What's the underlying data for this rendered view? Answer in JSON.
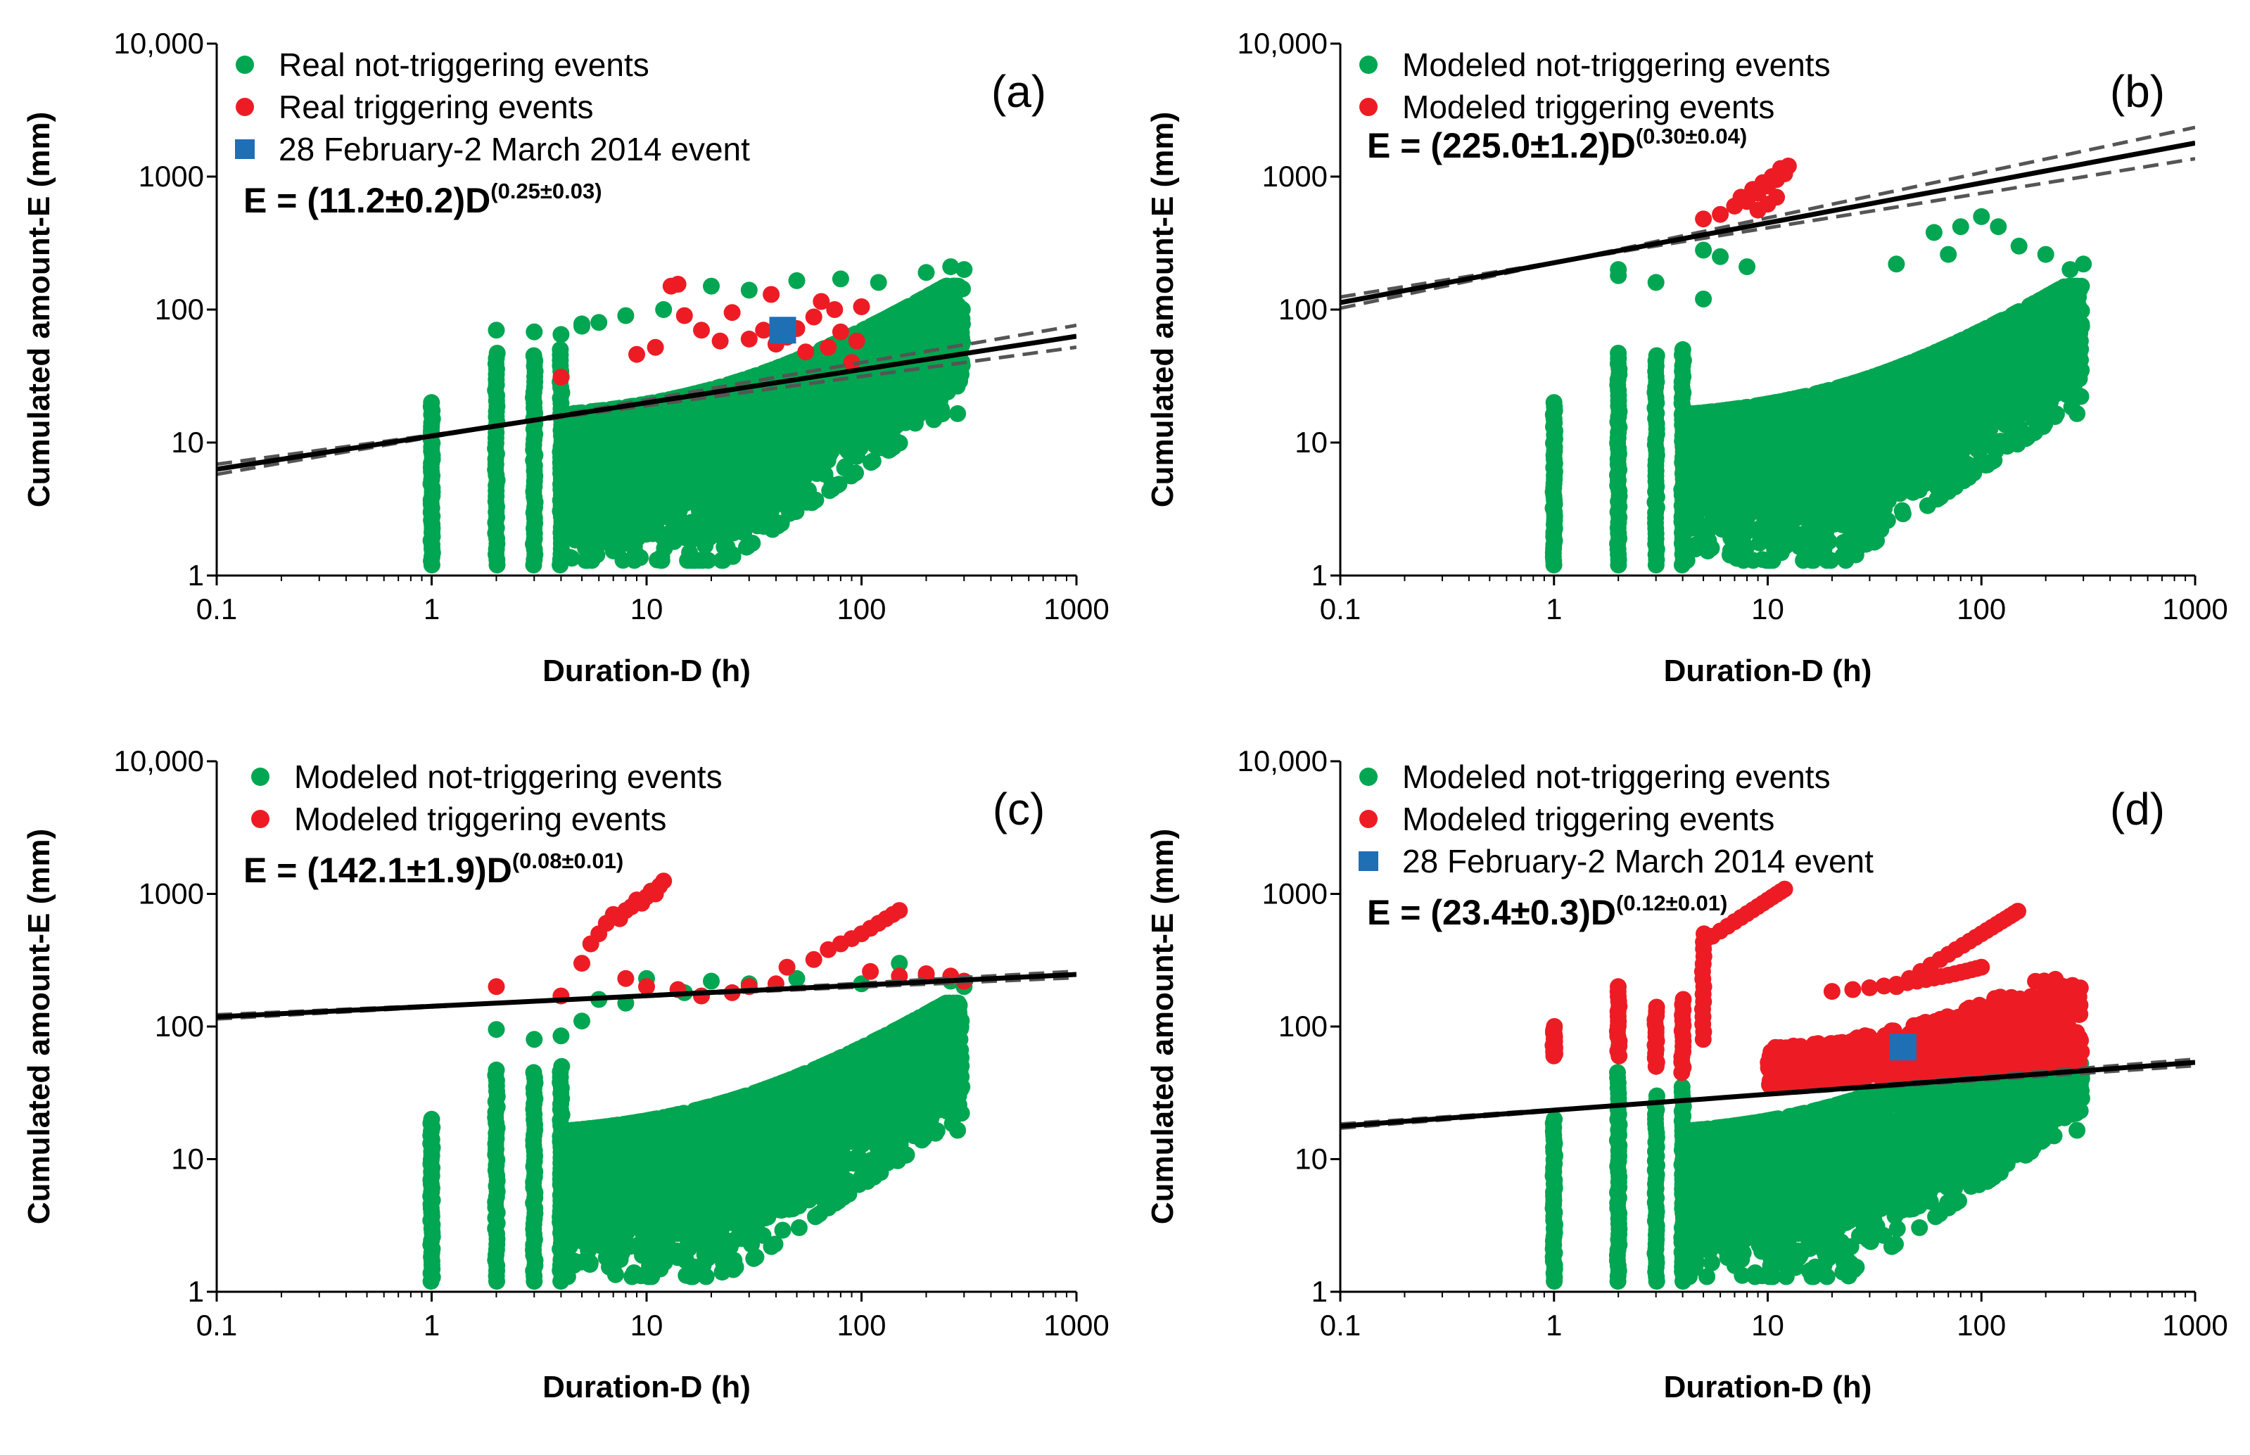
{
  "chart_data": [
    {
      "type": "scatter",
      "panel_label": "(a)",
      "xscale": "log",
      "yscale": "log",
      "xlim": [
        0.1,
        1000
      ],
      "ylim": [
        1,
        10000
      ],
      "xlabel": "Duration-D (h)",
      "ylabel": "Cumulated amount-E (mm)",
      "x_ticks": [
        "0.1",
        "1",
        "10",
        "100",
        "1000"
      ],
      "y_ticks": [
        "1",
        "10",
        "100",
        "1000",
        "10,000"
      ],
      "legend": [
        {
          "label": "Real not-triggering events",
          "color": "#00a651",
          "marker": "circle"
        },
        {
          "label": "Real triggering events",
          "color": "#ed1c24",
          "marker": "circle"
        },
        {
          "label": "28 February-2 March 2014 event",
          "color": "#1f6fb5",
          "marker": "square"
        }
      ],
      "equation": {
        "main": "E = (11.2±0.2)D",
        "exponent": "(0.25±0.03)"
      },
      "threshold": {
        "a": 11.2,
        "b": 0.25,
        "a_err": 0.2,
        "b_err": 0.03
      },
      "series": [
        {
          "name": "Real not-triggering events",
          "cloud": {
            "x_range": [
              1,
              300
            ],
            "y_range": [
              1.2,
              210
            ]
          }
        },
        {
          "name": "Real triggering events",
          "points": [
            [
              4,
              31
            ],
            [
              9,
              46
            ],
            [
              11,
              52
            ],
            [
              13,
              150
            ],
            [
              14,
              155
            ],
            [
              15,
              90
            ],
            [
              18,
              70
            ],
            [
              22,
              58
            ],
            [
              25,
              95
            ],
            [
              30,
              60
            ],
            [
              35,
              70
            ],
            [
              38,
              130
            ],
            [
              40,
              55
            ],
            [
              45,
              62
            ],
            [
              50,
              72
            ],
            [
              55,
              48
            ],
            [
              60,
              88
            ],
            [
              65,
              115
            ],
            [
              70,
              52
            ],
            [
              75,
              100
            ],
            [
              80,
              68
            ],
            [
              90,
              40
            ],
            [
              95,
              58
            ],
            [
              100,
              105
            ]
          ]
        },
        {
          "name": "28 February-2 March 2014 event",
          "points": [
            [
              43,
              70
            ]
          ]
        }
      ]
    },
    {
      "type": "scatter",
      "panel_label": "(b)",
      "xscale": "log",
      "yscale": "log",
      "xlim": [
        0.1,
        1000
      ],
      "ylim": [
        1,
        10000
      ],
      "xlabel": "Duration-D (h)",
      "ylabel": "Cumulated amount-E (mm)",
      "x_ticks": [
        "0.1",
        "1",
        "10",
        "100",
        "1000"
      ],
      "y_ticks": [
        "1",
        "10",
        "100",
        "1000",
        "10,000"
      ],
      "legend": [
        {
          "label": "Modeled not-triggering events",
          "color": "#00a651",
          "marker": "circle"
        },
        {
          "label": "Modeled triggering events",
          "color": "#ed1c24",
          "marker": "circle"
        }
      ],
      "equation": {
        "main": "E = (225.0±1.2)D",
        "exponent": "(0.30±0.04)"
      },
      "threshold": {
        "a": 225.0,
        "b": 0.3,
        "a_err": 1.2,
        "b_err": 0.04
      },
      "series": [
        {
          "name": "Modeled not-triggering events",
          "cloud": {
            "x_range": [
              1,
              300
            ],
            "y_range": [
              1.2,
              500
            ]
          }
        },
        {
          "name": "Modeled triggering events",
          "points": [
            [
              5,
              480
            ],
            [
              6,
              520
            ],
            [
              7,
              600
            ],
            [
              7.5,
              700
            ],
            [
              8,
              650
            ],
            [
              8.5,
              800
            ],
            [
              9,
              750
            ],
            [
              9.5,
              900
            ],
            [
              10,
              850
            ],
            [
              10.5,
              1000
            ],
            [
              11,
              950
            ],
            [
              11.5,
              1150
            ],
            [
              12,
              1050
            ],
            [
              12.5,
              1200
            ],
            [
              9,
              560
            ],
            [
              10,
              620
            ],
            [
              11,
              700
            ]
          ]
        }
      ]
    },
    {
      "type": "scatter",
      "panel_label": "(c)",
      "xscale": "log",
      "yscale": "log",
      "xlim": [
        0.1,
        1000
      ],
      "ylim": [
        1,
        10000
      ],
      "xlabel": "Duration-D (h)",
      "ylabel": "Cumulated amount-E (mm)",
      "x_ticks": [
        "0.1",
        "1",
        "10",
        "100",
        "1000"
      ],
      "y_ticks": [
        "1",
        "10",
        "100",
        "1000",
        "10,000"
      ],
      "legend": [
        {
          "label": "Modeled not-triggering events",
          "color": "#00a651",
          "marker": "circle"
        },
        {
          "label": "Modeled triggering events",
          "color": "#ed1c24",
          "marker": "circle"
        }
      ],
      "equation": {
        "main": "E = (142.1±1.9)D",
        "exponent": "(0.08±0.01)"
      },
      "threshold": {
        "a": 142.1,
        "b": 0.08,
        "a_err": 1.9,
        "b_err": 0.01
      },
      "series": [
        {
          "name": "Modeled not-triggering events",
          "cloud": {
            "x_range": [
              1,
              300
            ],
            "y_range": [
              1.2,
              300
            ]
          }
        },
        {
          "name": "Modeled triggering events",
          "points": [
            [
              2,
              200
            ],
            [
              4,
              170
            ],
            [
              5,
              300
            ],
            [
              5.5,
              420
            ],
            [
              6,
              500
            ],
            [
              6.5,
              600
            ],
            [
              7,
              700
            ],
            [
              7.5,
              650
            ],
            [
              8,
              750
            ],
            [
              8.5,
              800
            ],
            [
              9,
              900
            ],
            [
              9.5,
              850
            ],
            [
              10,
              950
            ],
            [
              10.5,
              1050
            ],
            [
              11,
              1000
            ],
            [
              11.5,
              1150
            ],
            [
              12,
              1250
            ],
            [
              8,
              230
            ],
            [
              10,
              200
            ],
            [
              14,
              190
            ],
            [
              18,
              170
            ],
            [
              25,
              180
            ],
            [
              30,
              200
            ],
            [
              40,
              210
            ],
            [
              45,
              280
            ],
            [
              60,
              320
            ],
            [
              70,
              380
            ],
            [
              80,
              420
            ],
            [
              90,
              460
            ],
            [
              100,
              500
            ],
            [
              110,
              550
            ],
            [
              120,
              600
            ],
            [
              130,
              650
            ],
            [
              140,
              700
            ],
            [
              150,
              750
            ],
            [
              110,
              260
            ],
            [
              150,
              240
            ],
            [
              200,
              250
            ],
            [
              260,
              240
            ],
            [
              300,
              220
            ]
          ]
        }
      ]
    },
    {
      "type": "scatter",
      "panel_label": "(d)",
      "xscale": "log",
      "yscale": "log",
      "xlim": [
        0.1,
        1000
      ],
      "ylim": [
        1,
        10000
      ],
      "xlabel": "Duration-D (h)",
      "ylabel": "Cumulated amount-E (mm)",
      "x_ticks": [
        "0.1",
        "1",
        "10",
        "100",
        "1000"
      ],
      "y_ticks": [
        "1",
        "10",
        "100",
        "1000",
        "10,000"
      ],
      "legend": [
        {
          "label": "Modeled not-triggering events",
          "color": "#00a651",
          "marker": "circle"
        },
        {
          "label": "Modeled triggering events",
          "color": "#ed1c24",
          "marker": "circle"
        },
        {
          "label": "28 February-2 March 2014 event",
          "color": "#1f6fb5",
          "marker": "square"
        }
      ],
      "equation": {
        "main": "E = (23.4±0.3)D",
        "exponent": "(0.12±0.01)"
      },
      "threshold": {
        "a": 23.4,
        "b": 0.12,
        "a_err": 0.3,
        "b_err": 0.01
      },
      "series": [
        {
          "name": "Modeled not-triggering events",
          "cloud": {
            "x_range": [
              1,
              300
            ],
            "y_range": [
              1.2,
              50
            ]
          }
        },
        {
          "name": "Modeled triggering events",
          "cloud": {
            "x_range": [
              1,
              300
            ],
            "y_range": [
              30,
              1200
            ]
          }
        },
        {
          "name": "28 February-2 March 2014 event",
          "points": [
            [
              43,
              70
            ]
          ]
        }
      ]
    }
  ]
}
